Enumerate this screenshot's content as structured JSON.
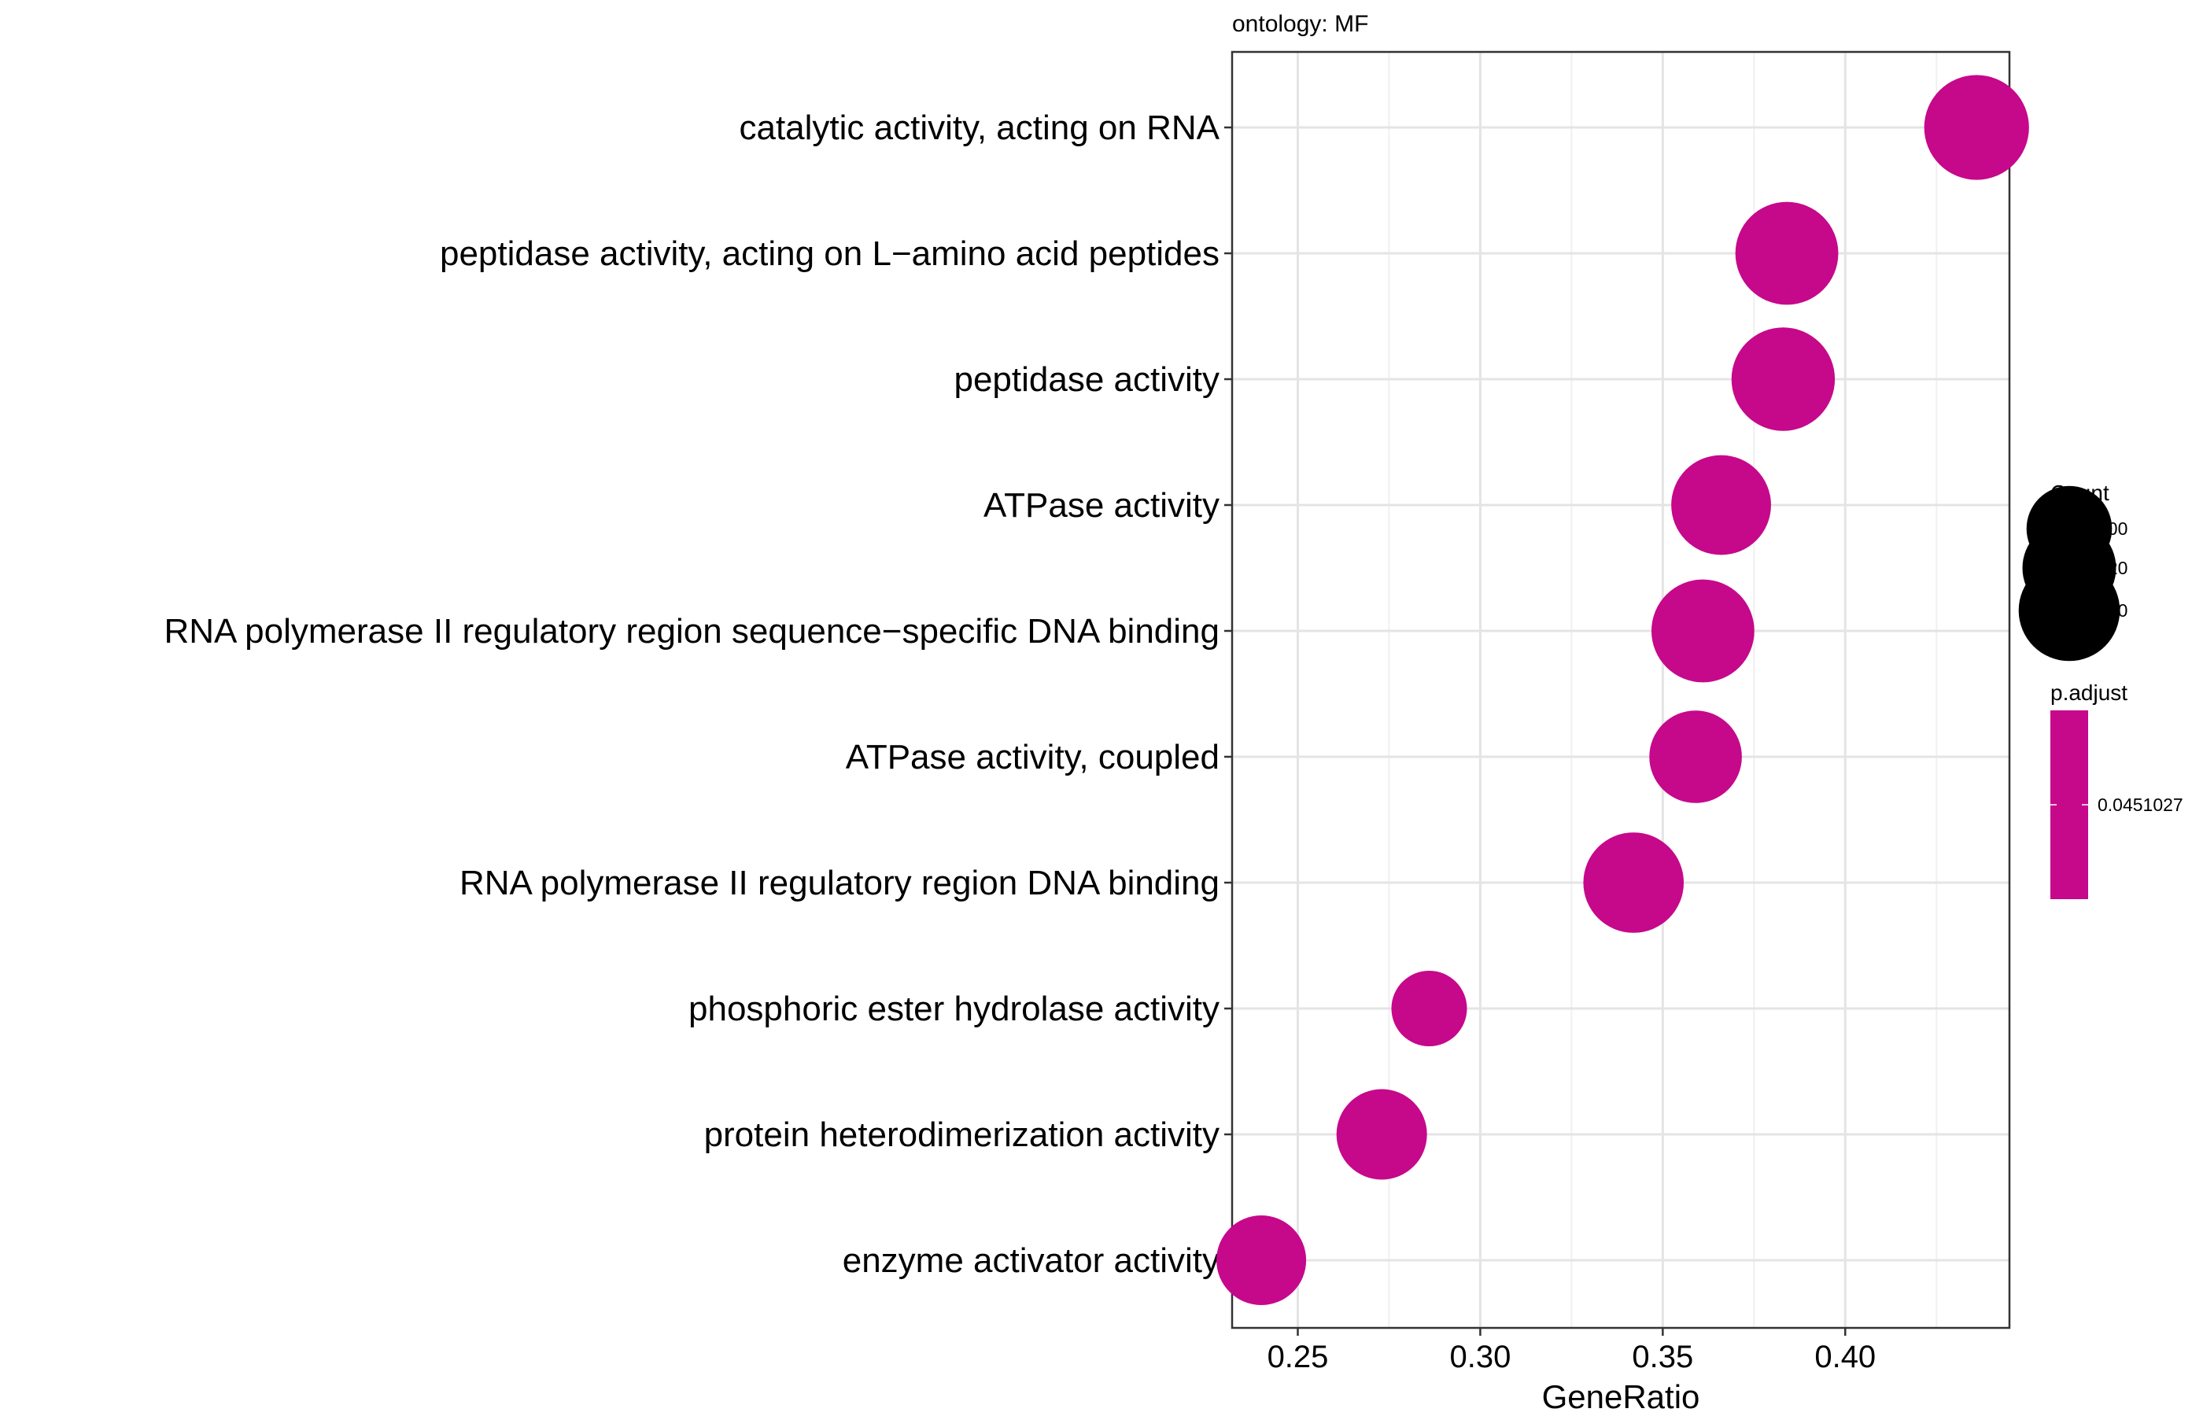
{
  "chart_data": {
    "type": "scatter",
    "title": "ontology: MF",
    "xlabel": "GeneRatio",
    "ylabel": "",
    "xlim": [
      0.232,
      0.445
    ],
    "xticks": [
      "0.25",
      "0.30",
      "0.35",
      "0.40"
    ],
    "grid": true,
    "color": "#c6088b",
    "categories": [
      "catalytic activity, acting on RNA",
      "peptidase activity, acting on L−amino acid peptides",
      "peptidase activity",
      "ATPase activity",
      "RNA polymerase II regulatory region sequence−specific DNA binding",
      "ATPase activity, coupled",
      "RNA polymerase II regulatory region DNA binding",
      "phosphoric ester hydrolase activity",
      "protein heterodimerization activity",
      "enzyme activator activity"
    ],
    "series": [
      {
        "x": [
          0.436,
          0.384,
          0.383,
          0.366,
          0.361,
          0.359,
          0.342,
          0.286,
          0.273,
          0.24
        ],
        "count": [
          150,
          145,
          146,
          136,
          145,
          117,
          138,
          78,
          112,
          110
        ]
      }
    ],
    "legend": {
      "placement": "right",
      "size_title": "Count",
      "size_entries": [
        {
          "label": "100",
          "value": 100
        },
        {
          "label": "120",
          "value": 120
        },
        {
          "label": "140",
          "value": 140
        }
      ],
      "color_title": "p.adjust",
      "color_label": "0.0451027"
    }
  }
}
